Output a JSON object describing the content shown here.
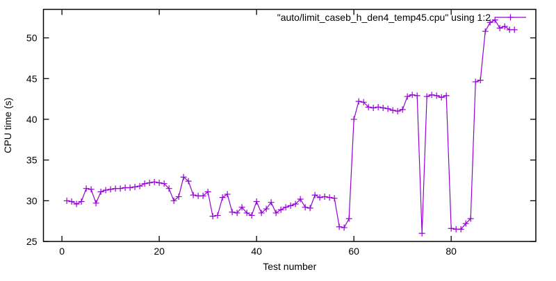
{
  "chart_data": {
    "type": "line",
    "title": "",
    "legend_label": "\"auto/limit_caseb_h_den4_temp45.cpu\" using 1:2",
    "legend_position": "top-right-inside",
    "xlabel": "Test number",
    "ylabel": "CPU time (s)",
    "xlim": [
      -3.8,
      97.4
    ],
    "ylim": [
      25,
      53.5
    ],
    "x_ticks": [
      0,
      20,
      40,
      60,
      80
    ],
    "y_ticks": [
      25,
      30,
      35,
      40,
      45,
      50
    ],
    "grid": false,
    "line_color": "#9400d3",
    "border_color": "#000000",
    "marker": "plus",
    "x": [
      1,
      2,
      3,
      4,
      5,
      6,
      7,
      8,
      9,
      10,
      11,
      12,
      13,
      14,
      15,
      16,
      17,
      18,
      19,
      20,
      21,
      22,
      23,
      24,
      25,
      26,
      27,
      28,
      29,
      30,
      31,
      32,
      33,
      34,
      35,
      36,
      37,
      38,
      39,
      40,
      41,
      42,
      43,
      44,
      45,
      46,
      47,
      48,
      49,
      50,
      51,
      52,
      53,
      54,
      55,
      56,
      57,
      58,
      59,
      60,
      61,
      62,
      63,
      64,
      65,
      66,
      67,
      68,
      69,
      70,
      71,
      72,
      73,
      74,
      75,
      76,
      77,
      78,
      79,
      80,
      81,
      82,
      83,
      84,
      85,
      86,
      87,
      88,
      89,
      90,
      91,
      92,
      93
    ],
    "values": [
      30.0,
      29.9,
      29.6,
      29.9,
      31.5,
      31.4,
      29.7,
      31.1,
      31.3,
      31.4,
      31.5,
      31.5,
      31.6,
      31.6,
      31.7,
      31.8,
      32.1,
      32.2,
      32.3,
      32.2,
      32.1,
      31.5,
      30.0,
      30.5,
      32.9,
      32.4,
      30.7,
      30.6,
      30.6,
      31.1,
      28.1,
      28.2,
      30.4,
      30.8,
      28.6,
      28.5,
      29.2,
      28.5,
      28.2,
      29.9,
      28.5,
      29.0,
      29.8,
      28.5,
      28.9,
      29.2,
      29.4,
      29.6,
      30.2,
      29.2,
      29.1,
      30.7,
      30.4,
      30.5,
      30.4,
      30.3,
      26.8,
      26.7,
      27.8,
      40.0,
      42.2,
      42.1,
      41.5,
      41.4,
      41.5,
      41.4,
      41.3,
      41.1,
      41.0,
      41.2,
      42.8,
      43.0,
      42.9,
      26.0,
      42.8,
      43.0,
      42.9,
      42.7,
      42.9,
      26.6,
      26.5,
      26.5,
      27.2,
      27.8,
      44.6,
      44.8,
      50.8,
      51.9,
      52.2,
      51.2,
      51.4,
      51.0,
      51.0
    ]
  }
}
